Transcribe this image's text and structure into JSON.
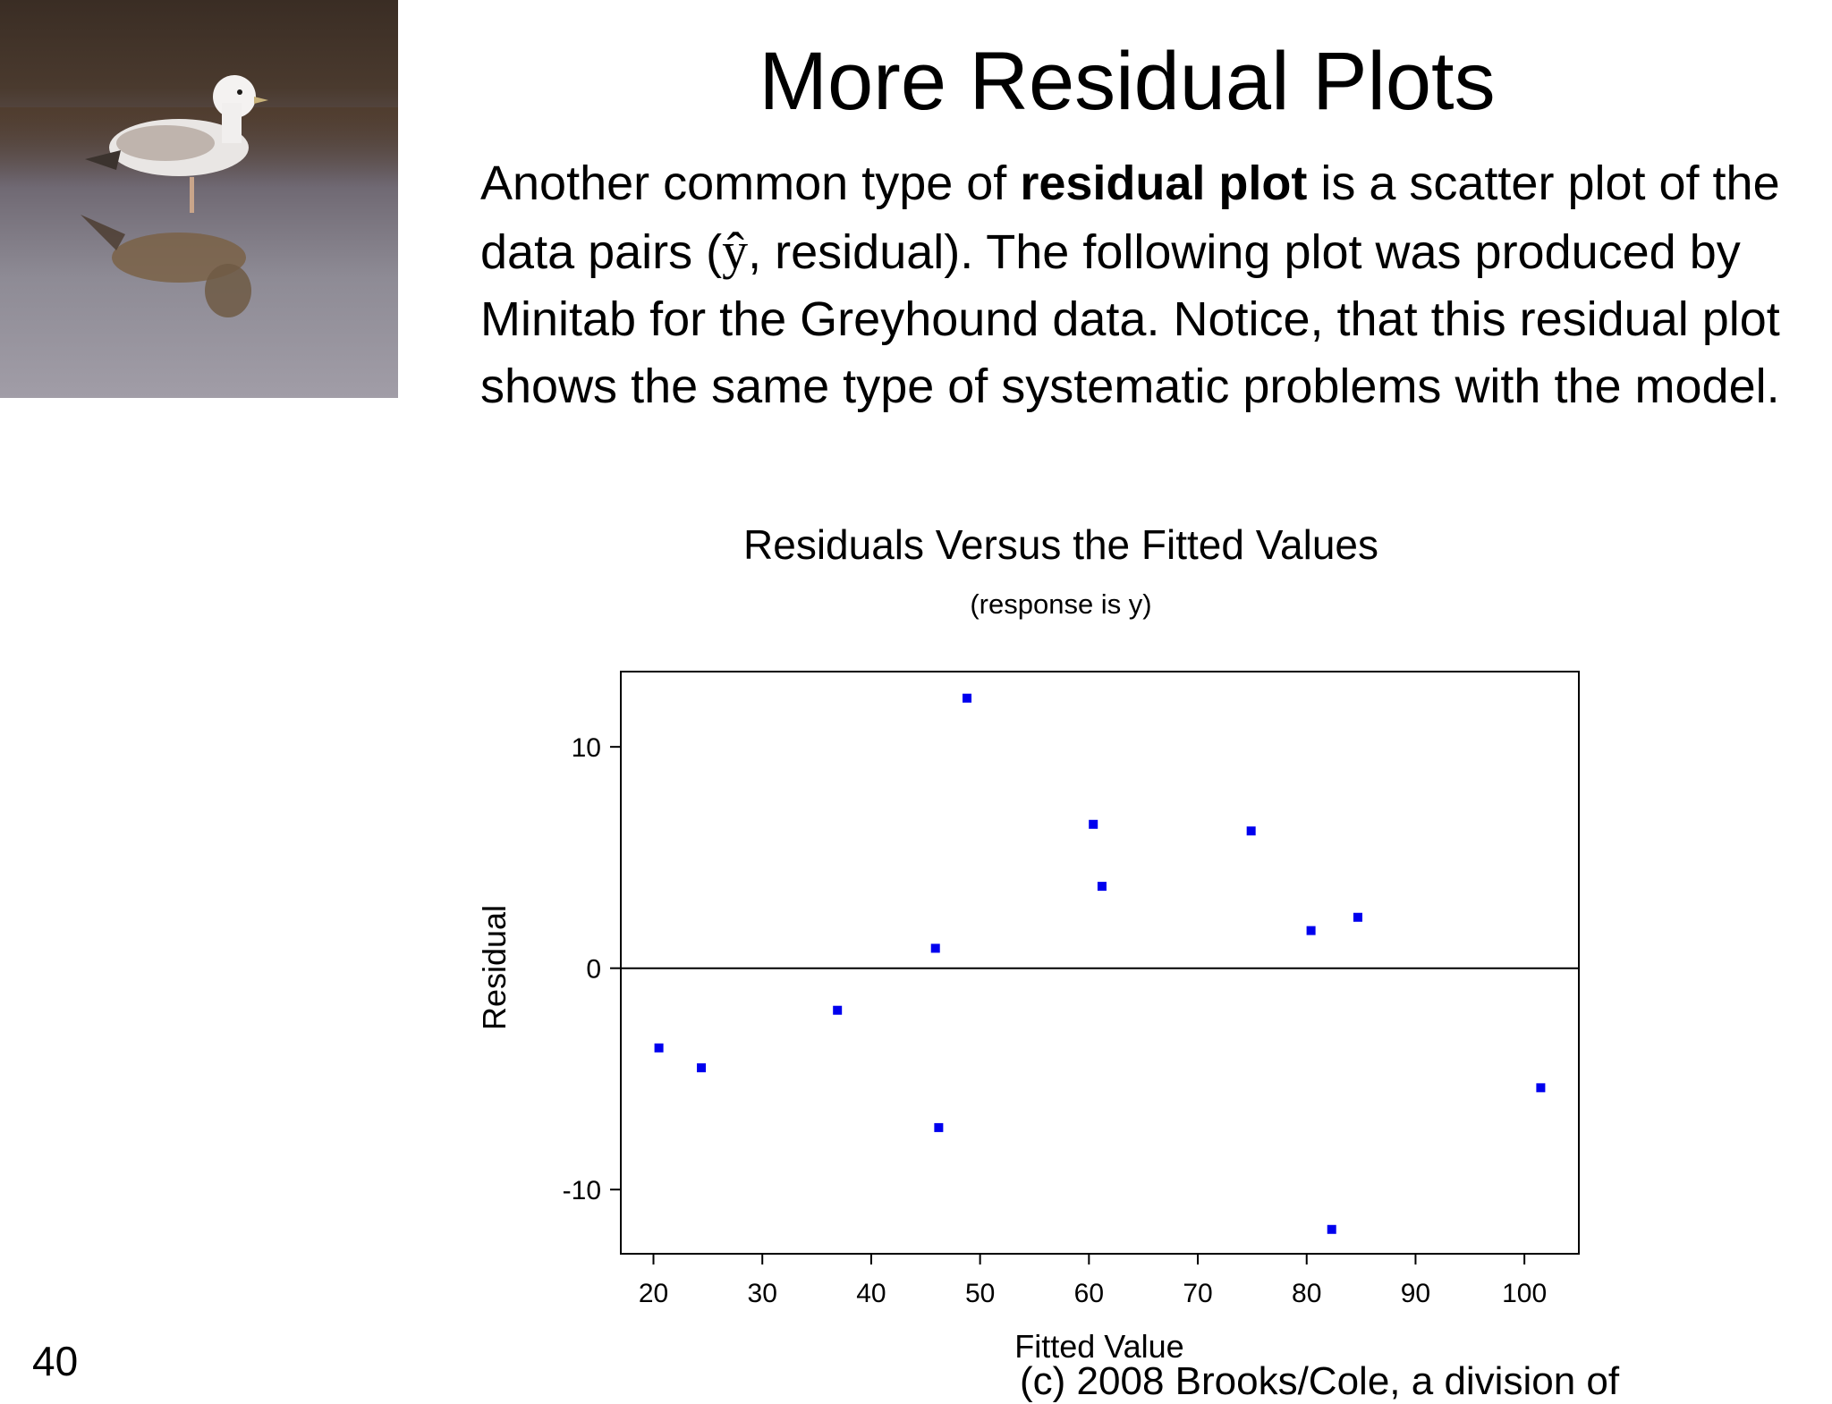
{
  "slide": {
    "title": "More Residual Plots",
    "paragraph": {
      "part1": "Another common type of ",
      "bold": "residual plot",
      "part2": " is a scatter plot of the data pairs (",
      "yhat": "ŷ",
      "part3": ", residual). The following plot was produced by Minitab for the Greyhound data. Notice, that this residual plot shows the same type of systematic problems with the model."
    },
    "slide_number": "40",
    "copyright": "(c) 2008 Brooks/Cole, a division of"
  },
  "photo": {
    "icon": "seagull-photo"
  },
  "chart_data": {
    "type": "scatter",
    "title": "Residuals Versus the Fitted Values",
    "subtitle": "(response is y)",
    "xlabel": "Fitted Value",
    "ylabel": "Residual",
    "xlim": [
      17,
      105
    ],
    "ylim": [
      -12.9,
      13.4
    ],
    "xticks": [
      20,
      30,
      40,
      50,
      60,
      70,
      80,
      90,
      100
    ],
    "yticks": [
      -10,
      0,
      10
    ],
    "reference_line_y": 0,
    "grid": false,
    "point_color": "#0000ee",
    "points": [
      {
        "x": 20.5,
        "y": -3.6
      },
      {
        "x": 24.4,
        "y": -4.5
      },
      {
        "x": 36.9,
        "y": -1.9
      },
      {
        "x": 45.9,
        "y": 0.9
      },
      {
        "x": 46.2,
        "y": -7.2
      },
      {
        "x": 48.8,
        "y": 12.2
      },
      {
        "x": 60.4,
        "y": 6.5
      },
      {
        "x": 61.2,
        "y": 3.7
      },
      {
        "x": 74.9,
        "y": 6.2
      },
      {
        "x": 80.4,
        "y": 1.7
      },
      {
        "x": 82.3,
        "y": -11.8
      },
      {
        "x": 84.7,
        "y": 2.3
      },
      {
        "x": 101.5,
        "y": -5.4
      }
    ]
  }
}
